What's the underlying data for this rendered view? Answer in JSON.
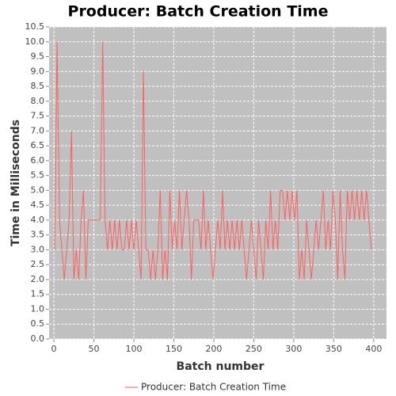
{
  "chart_data": {
    "type": "line",
    "title": "Producer: Batch Creation Time",
    "xlabel": "Batch number",
    "ylabel": "Time in Milliseconds",
    "x": [
      1,
      4,
      7,
      10,
      13,
      16,
      19,
      22,
      25,
      28,
      31,
      34,
      37,
      40,
      43,
      46,
      49,
      52,
      55,
      58,
      61,
      64,
      67,
      70,
      73,
      76,
      79,
      82,
      85,
      88,
      91,
      94,
      97,
      100,
      103,
      106,
      109,
      112,
      115,
      118,
      121,
      124,
      127,
      130,
      133,
      136,
      139,
      142,
      145,
      148,
      151,
      154,
      157,
      160,
      163,
      166,
      169,
      172,
      175,
      178,
      181,
      184,
      187,
      190,
      193,
      196,
      199,
      202,
      205,
      208,
      211,
      214,
      217,
      220,
      223,
      226,
      229,
      232,
      235,
      238,
      241,
      244,
      247,
      250,
      253,
      256,
      259,
      262,
      265,
      268,
      271,
      274,
      277,
      280,
      283,
      286,
      289,
      292,
      295,
      298,
      301,
      304,
      307,
      310,
      313,
      316,
      319,
      322,
      325,
      328,
      331,
      334,
      337,
      340,
      343,
      346,
      349,
      352,
      355,
      358,
      361,
      364,
      367,
      370,
      373,
      376,
      379,
      382,
      385,
      388,
      391,
      394,
      397
    ],
    "series": [
      {
        "name": "Producer: Batch Creation Time",
        "color": "#ff5f5f",
        "values": [
          3,
          10,
          4,
          3,
          2,
          3,
          4,
          7,
          2,
          3,
          2,
          4,
          5,
          2,
          4,
          4,
          4,
          4,
          4,
          4,
          10,
          4,
          3,
          4,
          3,
          4,
          3,
          4,
          3,
          3,
          4,
          3,
          4,
          3,
          4,
          3,
          2,
          9,
          3,
          3,
          2,
          3,
          2,
          3,
          5,
          2,
          3,
          2,
          5,
          3,
          4,
          3,
          5,
          3,
          4,
          5,
          4,
          2,
          4,
          4,
          4,
          3,
          5,
          3,
          4,
          3,
          2,
          3,
          4,
          3,
          5,
          3,
          4,
          3,
          4,
          3,
          4,
          3,
          4,
          3,
          2,
          3,
          4,
          3,
          2,
          4,
          3,
          2,
          4,
          3,
          5,
          3,
          4,
          3,
          5,
          5,
          4,
          5,
          4,
          5,
          4,
          5,
          2,
          3,
          2,
          4,
          3,
          2,
          3,
          4,
          3,
          4,
          5,
          3,
          4,
          3,
          5,
          4,
          2,
          5,
          3,
          2,
          5,
          4,
          5,
          4,
          5,
          4,
          5,
          4,
          5,
          4,
          3
        ]
      }
    ],
    "xlim": [
      -6,
      416
    ],
    "ylim": [
      0,
      10.5
    ],
    "xticks": [
      0,
      50,
      100,
      150,
      200,
      250,
      300,
      350,
      400
    ],
    "yticks": [
      {
        "value": 0,
        "label": "0.0"
      },
      {
        "value": 0.5,
        "label": "0.5"
      },
      {
        "value": 1,
        "label": "1.0"
      },
      {
        "value": 1.5,
        "label": "1.5"
      },
      {
        "value": 2,
        "label": "2.0"
      },
      {
        "value": 2.5,
        "label": "2.5"
      },
      {
        "value": 3,
        "label": "3.0"
      },
      {
        "value": 3.5,
        "label": "3.5"
      },
      {
        "value": 4,
        "label": "4.0"
      },
      {
        "value": 4.5,
        "label": "4.5"
      },
      {
        "value": 5,
        "label": "5.0"
      },
      {
        "value": 5.5,
        "label": "5.5"
      },
      {
        "value": 6,
        "label": "6.0"
      },
      {
        "value": 6.5,
        "label": "6.5"
      },
      {
        "value": 7,
        "label": "7.0"
      },
      {
        "value": 7.5,
        "label": "7.5"
      },
      {
        "value": 8,
        "label": "8.0"
      },
      {
        "value": 8.5,
        "label": "8.5"
      },
      {
        "value": 9,
        "label": "9.0"
      },
      {
        "value": 9.5,
        "label": "9.5"
      },
      {
        "value": 10,
        "label": "10.0"
      },
      {
        "value": 10.5,
        "label": "10.5"
      }
    ],
    "grid": true
  }
}
